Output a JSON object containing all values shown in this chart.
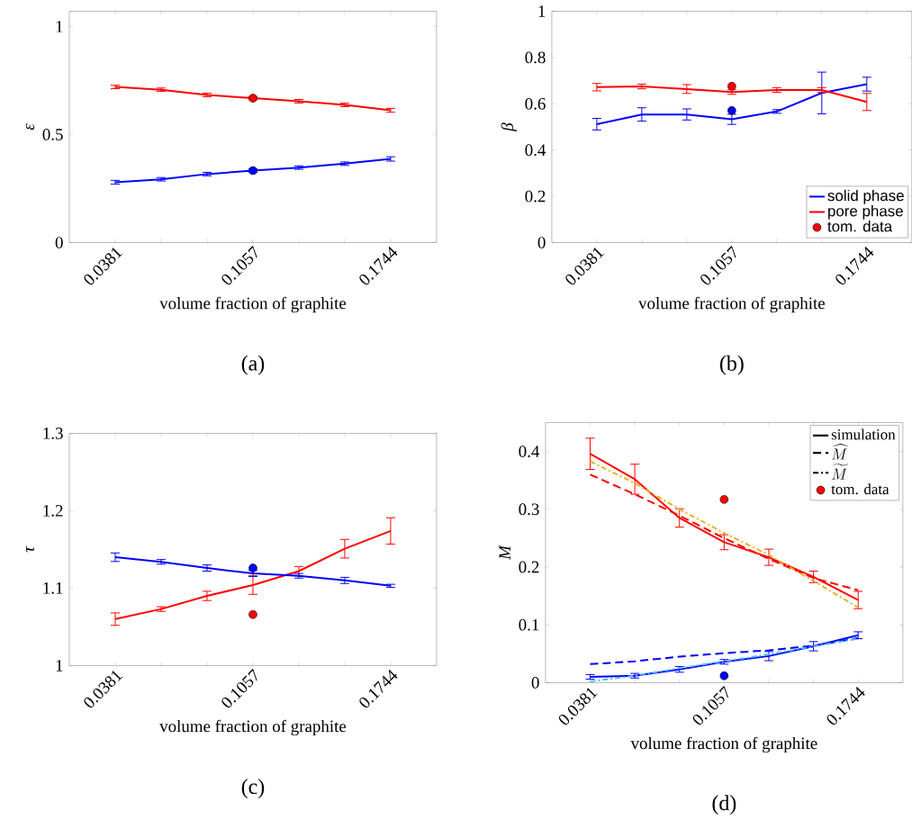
{
  "chart_data": [
    {
      "type": "line",
      "xlabel": "volume fraction of graphite",
      "ylabel": "ε",
      "categories": [
        "0.0381",
        null,
        null,
        "0.1057",
        null,
        null,
        "0.1744"
      ],
      "ylim": [
        0,
        1.07
      ],
      "yticks": [
        0,
        0.5,
        1
      ],
      "annotations": [
        "(a)"
      ],
      "series": [
        {
          "color": "#ff0000",
          "values": [
            0.72,
            0.707,
            0.683,
            0.668,
            0.654,
            0.637,
            0.612
          ],
          "errors": [
            0.008,
            0.008,
            0.008,
            0.008,
            0.008,
            0.008,
            0.009
          ]
        },
        {
          "color": "#0000ff",
          "values": [
            0.279,
            0.293,
            0.317,
            0.333,
            0.347,
            0.365,
            0.387
          ],
          "errors": [
            0.009,
            0.008,
            0.008,
            0.008,
            0.008,
            0.008,
            0.01
          ]
        },
        {
          "type": "scatter",
          "marker": "circle",
          "x": [
            "0.1057",
            "0.1057"
          ],
          "values": [
            0.668,
            0.333
          ],
          "colors": [
            "#ff0000",
            "#0000ff"
          ]
        }
      ]
    },
    {
      "type": "line",
      "xlabel": "volume fraction of graphite",
      "ylabel": "β",
      "categories": [
        "0.0381",
        null,
        null,
        "0.1057",
        null,
        null,
        "0.1744"
      ],
      "ylim": [
        0,
        1
      ],
      "yticks": [
        0,
        0.2,
        0.4,
        0.6,
        0.8,
        1
      ],
      "annotations": [
        "(b)"
      ],
      "legend": "bottom right",
      "series": [
        {
          "name": "solid phase",
          "color": "#0000ff",
          "values": [
            0.512,
            0.554,
            0.554,
            0.533,
            0.567,
            0.647,
            0.685
          ],
          "errors": [
            0.025,
            0.029,
            0.024,
            0.022,
            0.008,
            0.09,
            0.03
          ]
        },
        {
          "name": "pore phase",
          "color": "#ff0000",
          "values": [
            0.672,
            0.675,
            0.664,
            0.651,
            0.66,
            0.66,
            0.608
          ],
          "errors": [
            0.016,
            0.01,
            0.019,
            0.01,
            0.01,
            0.01,
            0.037
          ]
        },
        {
          "name": "tom. data",
          "type": "scatter",
          "marker": "circle",
          "color": "#000000",
          "x": [
            "0.1057",
            "0.1057"
          ],
          "values": [
            0.676,
            0.571
          ],
          "colors": [
            "#ff0000",
            "#0000ff"
          ]
        }
      ]
    },
    {
      "type": "line",
      "xlabel": "volume fraction of graphite",
      "ylabel": "τ",
      "categories": [
        "0.0381",
        null,
        null,
        "0.1057",
        null,
        null,
        "0.1744"
      ],
      "ylim": [
        1,
        1.3
      ],
      "yticks": [
        1,
        1.1,
        1.2,
        1.3
      ],
      "annotations": [
        "(c)"
      ],
      "series": [
        {
          "color": "#ff0000",
          "values": [
            1.06,
            1.073,
            1.09,
            1.104,
            1.122,
            1.151,
            1.174
          ],
          "errors": [
            0.008,
            0.003,
            0.006,
            0.012,
            0.006,
            0.012,
            0.017
          ]
        },
        {
          "color": "#0000ff",
          "values": [
            1.14,
            1.134,
            1.126,
            1.119,
            1.116,
            1.11,
            1.103
          ],
          "errors": [
            0.0055,
            0.003,
            0.004,
            0.004,
            0.003,
            0.004,
            0.002
          ]
        },
        {
          "type": "scatter",
          "marker": "circle",
          "x": [
            "0.1057",
            "0.1057"
          ],
          "values": [
            1.126,
            1.066
          ],
          "colors": [
            "#0000ff",
            "#ff0000"
          ]
        }
      ]
    },
    {
      "type": "line",
      "xlabel": "volume fraction of graphite",
      "ylabel": "M",
      "categories": [
        "0.0381",
        null,
        null,
        "0.1057",
        null,
        null,
        "0.1744"
      ],
      "ylim": [
        0,
        0.45
      ],
      "yticks": [
        0,
        0.1,
        0.2,
        0.3,
        0.4
      ],
      "annotations": [
        "(d)"
      ],
      "legend": "top right",
      "series": [
        {
          "color": "#ff0000",
          "values": [
            0.396,
            0.352,
            0.285,
            0.243,
            0.217,
            0.183,
            0.143
          ],
          "errors": [
            0.027,
            0.026,
            0.016,
            0.013,
            0.014,
            0.01,
            0.015
          ]
        },
        {
          "color": "#ff0000",
          "line_style": "dashed",
          "values": [
            0.36,
            0.326,
            0.289,
            0.25,
            0.214,
            0.181,
            0.16
          ]
        },
        {
          "color": "#edb120",
          "line_style": "dashdot",
          "values": [
            0.383,
            0.345,
            0.3,
            0.259,
            0.221,
            0.176,
            0.13
          ]
        },
        {
          "color": "#0000ff",
          "values": [
            0.01,
            0.012,
            0.023,
            0.036,
            0.046,
            0.063,
            0.082
          ],
          "errors": [
            0.004,
            0.004,
            0.005,
            0.004,
            0.008,
            0.008,
            0.006
          ]
        },
        {
          "color": "#0000ff",
          "line_style": "dashed",
          "values": [
            0.032,
            0.037,
            0.045,
            0.051,
            0.056,
            0.064,
            0.077
          ]
        },
        {
          "color": "#4dbeee",
          "line_style": "dashdot",
          "values": [
            0.002,
            0.012,
            0.025,
            0.037,
            0.049,
            0.063,
            0.076
          ]
        },
        {
          "name": "simulation",
          "color": "#000000",
          "line_style": "solid",
          "values": [
            null,
            null,
            null,
            null,
            null,
            null,
            null
          ]
        },
        {
          "name": "\\widehat{M}",
          "color": "#000000",
          "line_style": "dashed",
          "values": [
            null,
            null,
            null,
            null,
            null,
            null,
            null
          ]
        },
        {
          "name": "\\widetilde{M}",
          "color": "#000000",
          "line_style": "dashdot",
          "values": [
            null,
            null,
            null,
            null,
            null,
            null,
            null
          ]
        },
        {
          "name": "tom. data",
          "type": "scatter",
          "marker": "circle",
          "color": "#000000",
          "x": [
            "0.1057",
            "0.1057"
          ],
          "values": [
            0.317,
            0.012
          ],
          "colors": [
            "#ff0000",
            "#0000ff"
          ]
        }
      ]
    }
  ]
}
